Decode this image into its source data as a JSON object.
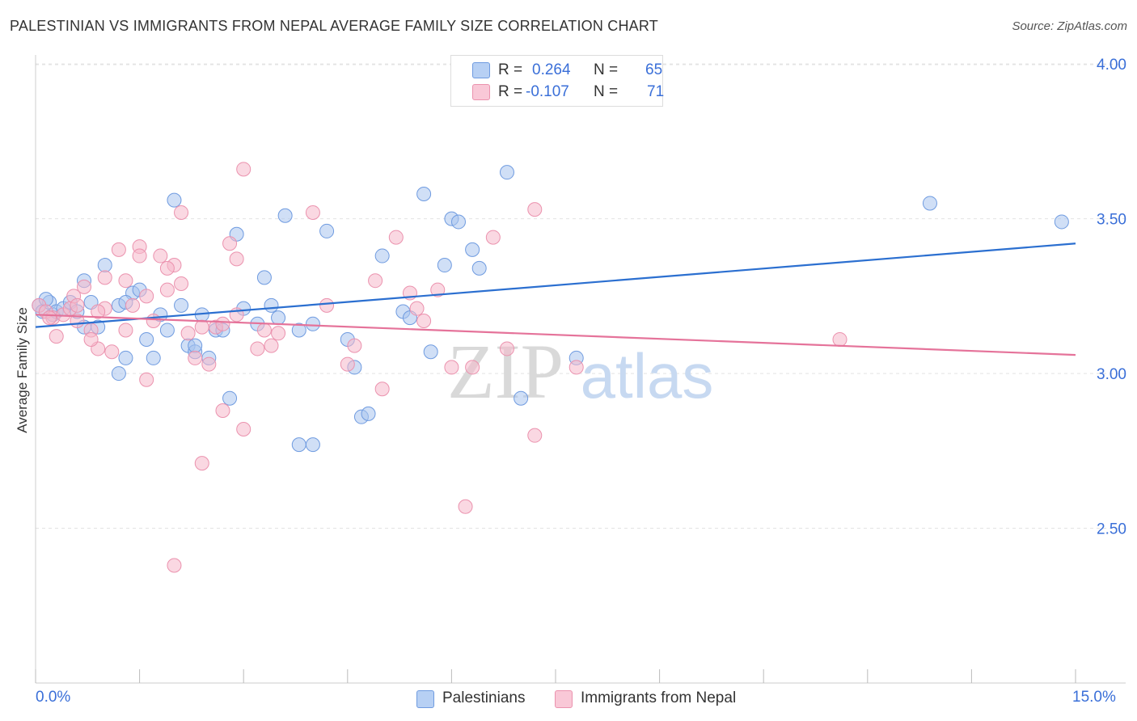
{
  "title": "PALESTINIAN VS IMMIGRANTS FROM NEPAL AVERAGE FAMILY SIZE CORRELATION CHART",
  "source": "Source: ZipAtlas.com",
  "legend": {
    "row1": {
      "r_label": "R =",
      "r_value": "0.264",
      "n_label": "N =",
      "n_value": "65"
    },
    "row2": {
      "r_label": "R =",
      "r_value": "-0.107",
      "n_label": "N =",
      "n_value": "71"
    }
  },
  "watermark": {
    "zip": "ZIP",
    "atlas": "atlas"
  },
  "colors": {
    "blue_fill": "#a9c5ef",
    "blue_stroke": "#6f9be0",
    "blue_line": "#2b6fd0",
    "pink_fill": "#f6b8cb",
    "pink_stroke": "#eb92ae",
    "pink_line": "#e5739a",
    "axis_text": "#3a6fd8",
    "grid": "#e3e3e3"
  },
  "chart_data": {
    "type": "scatter",
    "xlabel": "",
    "ylabel": "Average Family Size",
    "xlim": [
      0,
      15
    ],
    "ylim": [
      2.0,
      4.05
    ],
    "x_tick_labels": [
      "0.0%",
      "15.0%"
    ],
    "y_ticks": [
      2.5,
      3.0,
      3.5,
      4.0
    ],
    "y_tick_labels": [
      "2.50",
      "3.00",
      "3.50",
      "4.00"
    ],
    "grid": true,
    "legend_position": "bottom",
    "series": [
      {
        "name": "Palestinians",
        "trend": {
          "x": [
            0,
            15
          ],
          "y": [
            3.15,
            3.42
          ]
        },
        "points": [
          [
            0.05,
            3.22
          ],
          [
            0.1,
            3.2
          ],
          [
            0.2,
            3.23
          ],
          [
            0.25,
            3.19
          ],
          [
            0.3,
            3.2
          ],
          [
            0.4,
            3.21
          ],
          [
            0.5,
            3.23
          ],
          [
            0.6,
            3.2
          ],
          [
            0.7,
            3.3
          ],
          [
            0.8,
            3.23
          ],
          [
            0.9,
            3.15
          ],
          [
            1.0,
            3.35
          ],
          [
            1.2,
            3.22
          ],
          [
            1.3,
            3.05
          ],
          [
            1.4,
            3.26
          ],
          [
            1.5,
            3.27
          ],
          [
            1.6,
            3.11
          ],
          [
            1.7,
            3.05
          ],
          [
            1.8,
            3.19
          ],
          [
            1.9,
            3.14
          ],
          [
            2.0,
            3.56
          ],
          [
            2.1,
            3.22
          ],
          [
            2.2,
            3.09
          ],
          [
            2.3,
            3.07
          ],
          [
            2.4,
            3.19
          ],
          [
            2.5,
            3.05
          ],
          [
            2.6,
            3.14
          ],
          [
            2.7,
            3.14
          ],
          [
            2.9,
            3.45
          ],
          [
            3.0,
            3.21
          ],
          [
            3.2,
            3.16
          ],
          [
            3.3,
            3.31
          ],
          [
            3.4,
            3.22
          ],
          [
            3.5,
            3.18
          ],
          [
            3.6,
            3.51
          ],
          [
            3.8,
            3.14
          ],
          [
            4.0,
            3.16
          ],
          [
            4.2,
            3.46
          ],
          [
            4.5,
            3.11
          ],
          [
            4.6,
            3.02
          ],
          [
            4.7,
            2.86
          ],
          [
            4.8,
            2.87
          ],
          [
            5.0,
            3.38
          ],
          [
            5.3,
            3.2
          ],
          [
            5.4,
            3.18
          ],
          [
            5.6,
            3.58
          ],
          [
            5.7,
            3.07
          ],
          [
            5.9,
            3.35
          ],
          [
            6.0,
            3.5
          ],
          [
            6.1,
            3.49
          ],
          [
            6.3,
            3.4
          ],
          [
            6.4,
            3.34
          ],
          [
            6.8,
            3.65
          ],
          [
            7.0,
            2.92
          ],
          [
            7.8,
            3.05
          ],
          [
            3.8,
            2.77
          ],
          [
            4.0,
            2.77
          ],
          [
            2.8,
            2.92
          ],
          [
            1.2,
            3.0
          ],
          [
            12.9,
            3.55
          ],
          [
            14.8,
            3.49
          ],
          [
            0.15,
            3.24
          ],
          [
            1.3,
            3.23
          ],
          [
            0.7,
            3.15
          ],
          [
            2.3,
            3.09
          ]
        ]
      },
      {
        "name": "Immigrants from Nepal",
        "trend": {
          "x": [
            0,
            15
          ],
          "y": [
            3.19,
            3.06
          ]
        },
        "points": [
          [
            0.05,
            3.22
          ],
          [
            0.15,
            3.2
          ],
          [
            0.25,
            3.18
          ],
          [
            0.3,
            3.12
          ],
          [
            0.4,
            3.19
          ],
          [
            0.5,
            3.21
          ],
          [
            0.55,
            3.25
          ],
          [
            0.6,
            3.17
          ],
          [
            0.7,
            3.28
          ],
          [
            0.8,
            3.14
          ],
          [
            0.9,
            3.08
          ],
          [
            1.0,
            3.21
          ],
          [
            1.1,
            3.07
          ],
          [
            1.2,
            3.4
          ],
          [
            1.3,
            3.14
          ],
          [
            1.4,
            3.22
          ],
          [
            1.5,
            3.41
          ],
          [
            1.6,
            2.98
          ],
          [
            1.7,
            3.17
          ],
          [
            1.8,
            3.38
          ],
          [
            1.9,
            3.27
          ],
          [
            2.0,
            3.35
          ],
          [
            2.1,
            3.29
          ],
          [
            2.2,
            3.13
          ],
          [
            2.3,
            3.05
          ],
          [
            2.4,
            3.15
          ],
          [
            2.5,
            3.03
          ],
          [
            2.6,
            3.15
          ],
          [
            2.7,
            3.16
          ],
          [
            2.8,
            3.42
          ],
          [
            2.9,
            3.37
          ],
          [
            3.0,
            3.66
          ],
          [
            3.2,
            3.08
          ],
          [
            3.3,
            3.14
          ],
          [
            3.5,
            3.13
          ],
          [
            4.0,
            3.52
          ],
          [
            4.2,
            3.22
          ],
          [
            4.5,
            3.03
          ],
          [
            4.6,
            3.09
          ],
          [
            4.9,
            3.3
          ],
          [
            5.0,
            2.95
          ],
          [
            5.2,
            3.44
          ],
          [
            5.4,
            3.26
          ],
          [
            5.6,
            3.17
          ],
          [
            5.8,
            3.27
          ],
          [
            6.0,
            3.02
          ],
          [
            6.3,
            3.02
          ],
          [
            6.6,
            3.44
          ],
          [
            6.8,
            3.08
          ],
          [
            7.2,
            3.53
          ],
          [
            7.8,
            3.02
          ],
          [
            7.2,
            2.8
          ],
          [
            6.2,
            2.57
          ],
          [
            2.4,
            2.71
          ],
          [
            2.0,
            2.38
          ],
          [
            2.7,
            2.88
          ],
          [
            3.0,
            2.82
          ],
          [
            1.6,
            3.25
          ],
          [
            0.8,
            3.11
          ],
          [
            1.0,
            3.31
          ],
          [
            1.9,
            3.34
          ],
          [
            11.6,
            3.11
          ],
          [
            0.2,
            3.18
          ],
          [
            0.6,
            3.22
          ],
          [
            0.9,
            3.2
          ],
          [
            1.3,
            3.3
          ],
          [
            2.9,
            3.19
          ],
          [
            5.5,
            3.21
          ],
          [
            2.1,
            3.52
          ],
          [
            1.5,
            3.38
          ],
          [
            3.4,
            3.09
          ]
        ]
      }
    ]
  }
}
